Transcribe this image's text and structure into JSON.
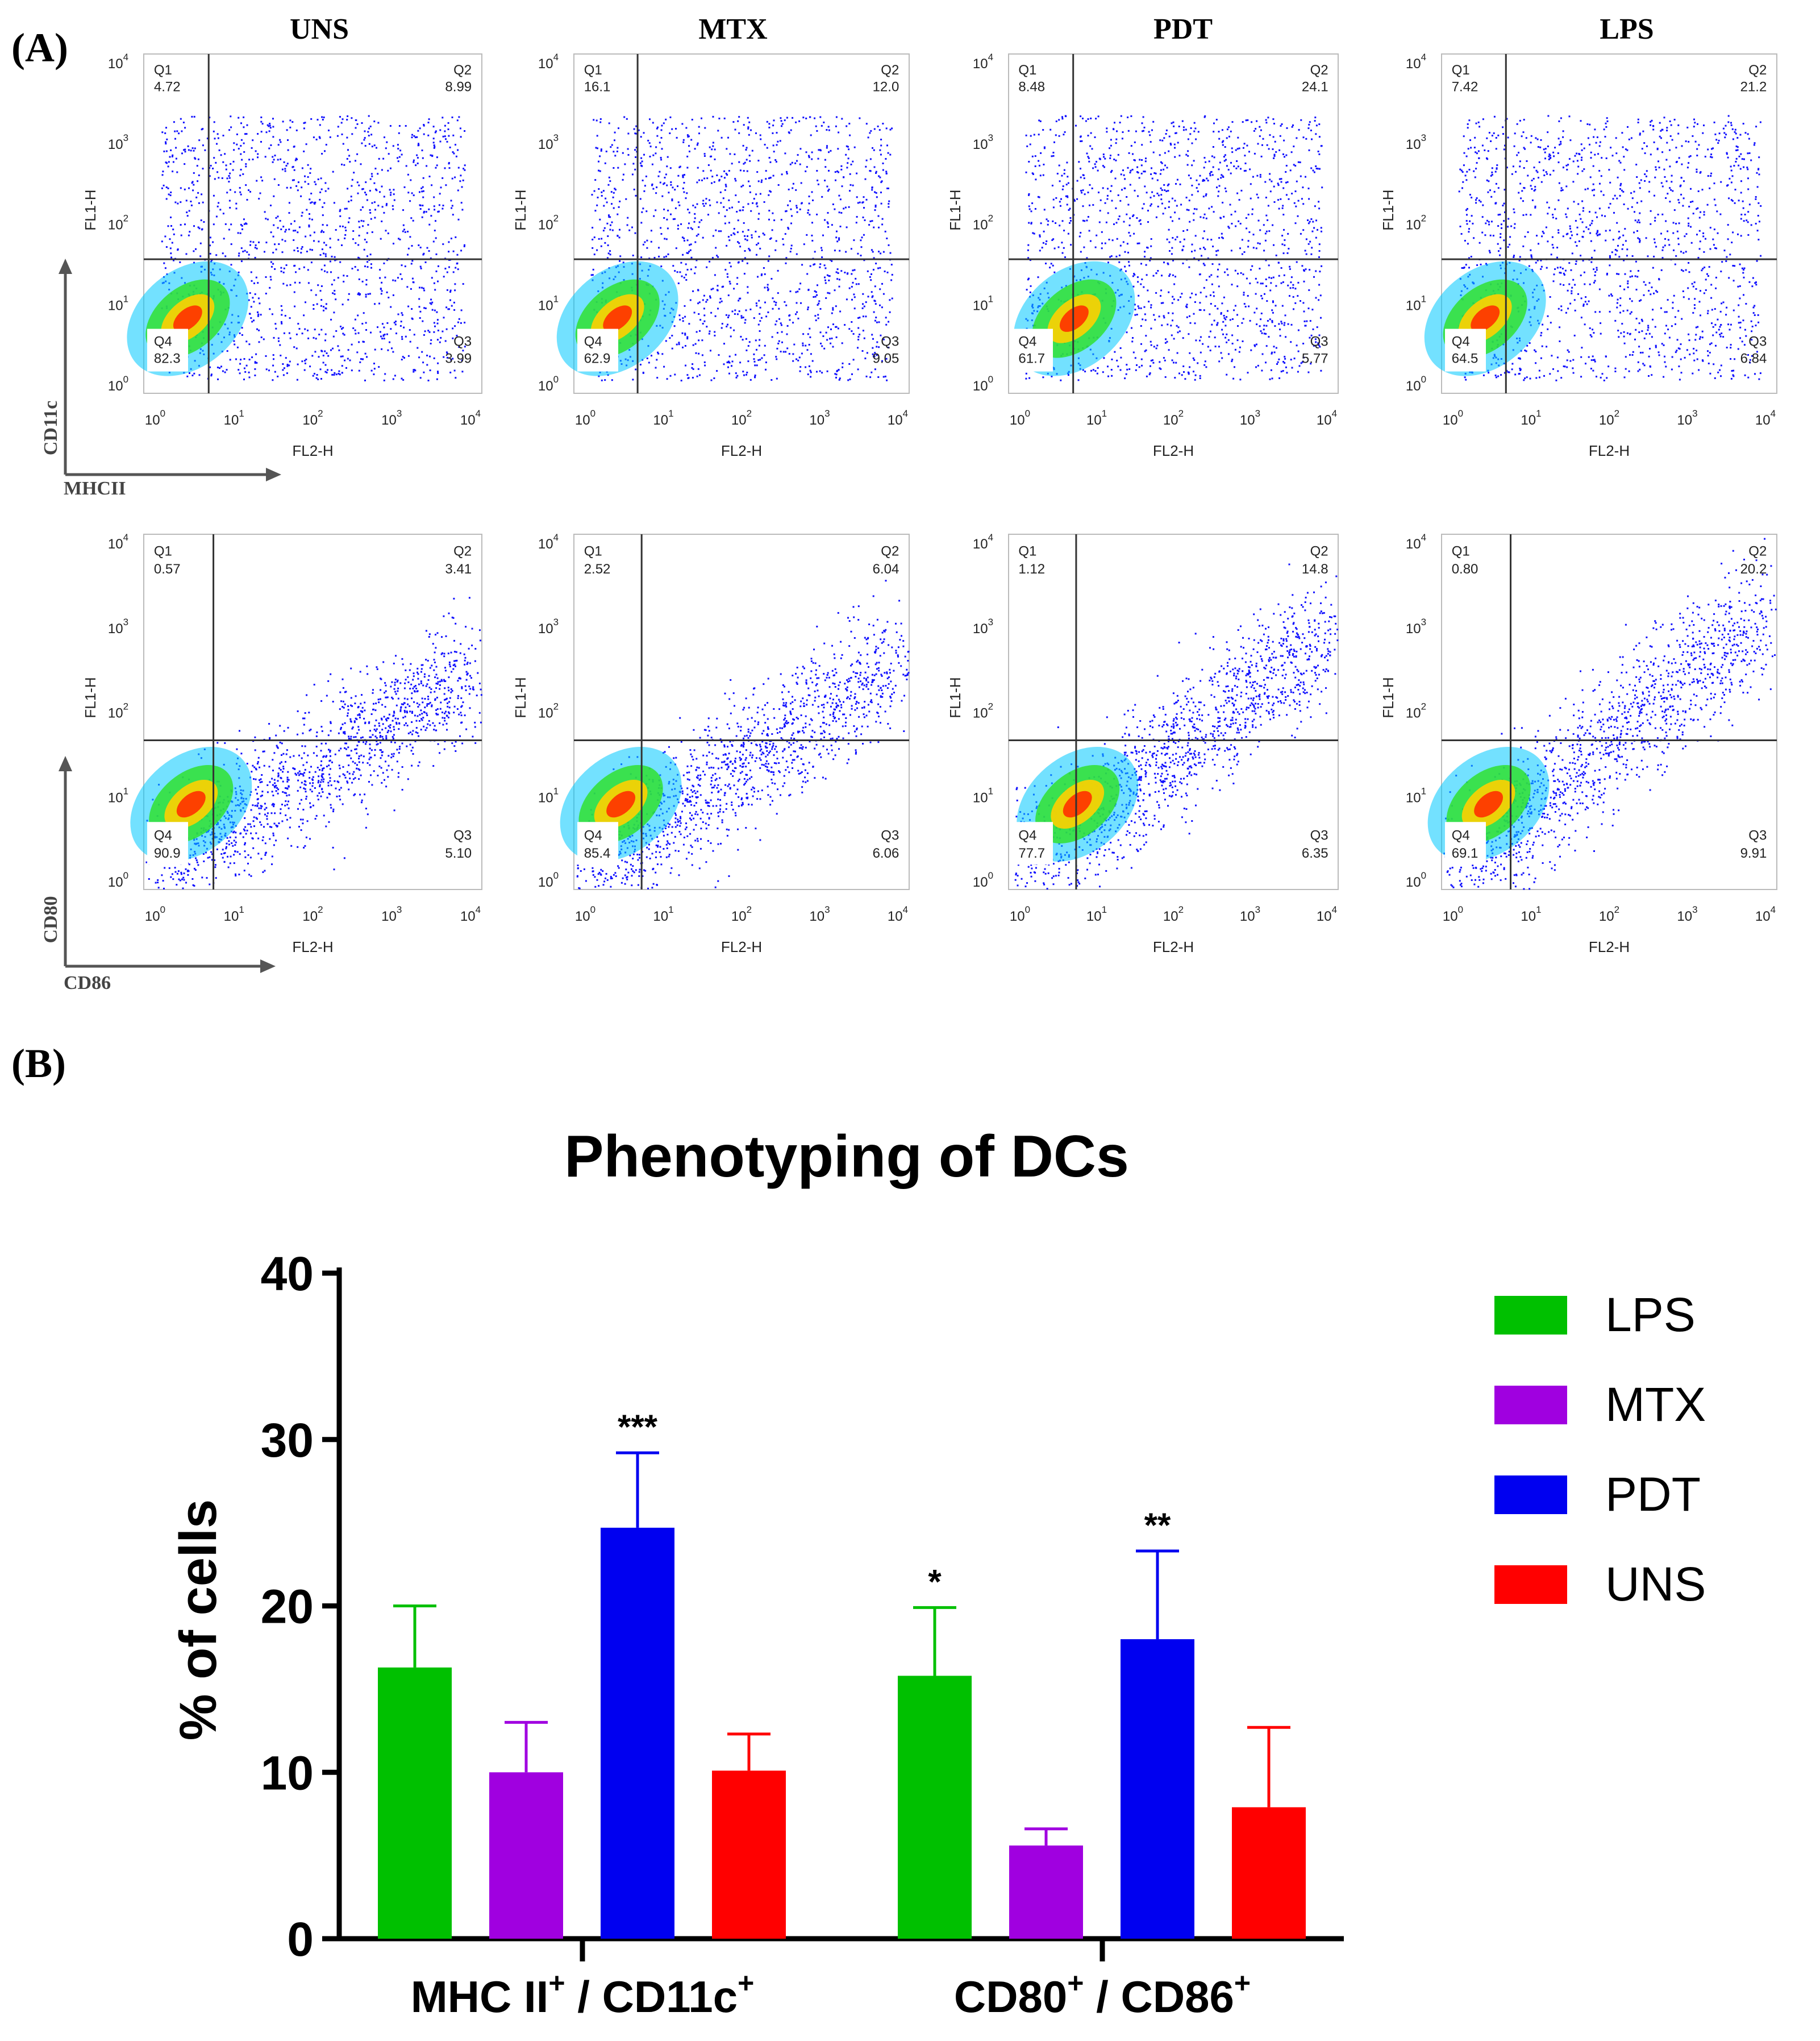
{
  "panel_a": {
    "label": "(A)",
    "column_titles": [
      "UNS",
      "MTX",
      "PDT",
      "LPS"
    ],
    "x_axis_label": "FL2-H",
    "y_axis_label": "FL1-H",
    "tick_labels": [
      "10",
      "10",
      "10",
      "10",
      "10"
    ],
    "tick_exponents": [
      "0",
      "1",
      "2",
      "3",
      "4"
    ],
    "quadrant_labels": [
      "Q1",
      "Q2",
      "Q3",
      "Q4"
    ],
    "rows": [
      {
        "marker_y": "CD11c",
        "marker_x": "MHCII",
        "plots": [
          {
            "group": "UNS",
            "q1": "4.72",
            "q2": "8.99",
            "q3": "3.99",
            "q4": "82.3"
          },
          {
            "group": "MTX",
            "q1": "16.1",
            "q2": "12.0",
            "q3": "9.05",
            "q4": "62.9"
          },
          {
            "group": "PDT",
            "q1": "8.48",
            "q2": "24.1",
            "q3": "5.77",
            "q4": "61.7"
          },
          {
            "group": "LPS",
            "q1": "7.42",
            "q2": "21.2",
            "q3": "6.84",
            "q4": "64.5"
          }
        ]
      },
      {
        "marker_y": "CD80",
        "marker_x": "CD86",
        "plots": [
          {
            "group": "UNS",
            "q1": "0.57",
            "q2": "3.41",
            "q3": "5.10",
            "q4": "90.9"
          },
          {
            "group": "MTX",
            "q1": "2.52",
            "q2": "6.04",
            "q3": "6.06",
            "q4": "85.4"
          },
          {
            "group": "PDT",
            "q1": "1.12",
            "q2": "14.8",
            "q3": "6.35",
            "q4": "77.7"
          },
          {
            "group": "LPS",
            "q1": "0.80",
            "q2": "20.2",
            "q3": "9.91",
            "q4": "69.1"
          }
        ]
      }
    ]
  },
  "panel_b": {
    "label": "(B)"
  },
  "colors": {
    "LPS": "#00c000",
    "MTX": "#a000e0",
    "PDT": "#0000f0",
    "UNS": "#ff0000",
    "axis": "#000000",
    "gate": "#333333",
    "dot_blue": "#1010ff"
  },
  "chart_data": {
    "type": "bar",
    "title": "Phenotyping of DCs",
    "ylabel": "% of cells",
    "xlabel": "",
    "ylim": [
      0,
      40
    ],
    "yticks": [
      0,
      10,
      20,
      30,
      40
    ],
    "categories": [
      {
        "main": "MHC II",
        "sup1": "+",
        "sep": " / CD11c",
        "sup2": "+"
      },
      {
        "main": "CD80",
        "sup1": "+",
        "sep": " / CD86",
        "sup2": "+"
      }
    ],
    "legend_position": "right",
    "series": [
      {
        "name": "LPS",
        "values": [
          16.3,
          15.8
        ],
        "errors": [
          3.7,
          4.1
        ],
        "significance": [
          "",
          "*"
        ]
      },
      {
        "name": "MTX",
        "values": [
          10.0,
          5.6
        ],
        "errors": [
          3.0,
          1.0
        ],
        "significance": [
          "",
          ""
        ]
      },
      {
        "name": "PDT",
        "values": [
          24.7,
          18.0
        ],
        "errors": [
          4.5,
          5.3
        ],
        "significance": [
          "***",
          "**"
        ]
      },
      {
        "name": "UNS",
        "values": [
          10.1,
          7.9
        ],
        "errors": [
          2.2,
          4.8
        ],
        "significance": [
          "",
          ""
        ]
      }
    ]
  }
}
